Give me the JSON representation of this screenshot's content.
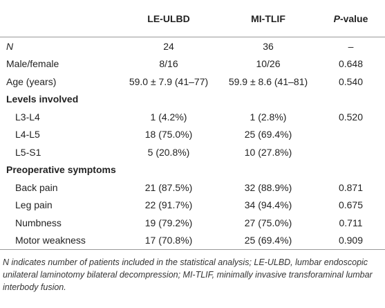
{
  "table": {
    "header": [
      "LE-ULBD",
      "MI-TLIF"
    ],
    "pvalue_header": {
      "italic": "P",
      "rest": "-value"
    },
    "rows": [
      [
        "N",
        "24",
        "36",
        "–"
      ],
      [
        "Male/female",
        "8/16",
        "10/26",
        "0.648"
      ],
      [
        "Age (years)",
        "59.0 ± 7.9 (41–77)",
        "59.9 ± 8.6 (41–81)",
        "0.540"
      ]
    ],
    "groups": [
      {
        "title": "Levels involved",
        "rows": [
          [
            "L3-L4",
            "1 (4.2%)",
            "1 (2.8%)",
            "0.520"
          ],
          [
            "L4-L5",
            "18 (75.0%)",
            "25 (69.4%)",
            null
          ],
          [
            "L5-S1",
            "5 (20.8%)",
            "10 (27.8%)",
            null
          ]
        ]
      },
      {
        "title": "Preoperative symptoms",
        "rows": [
          [
            "Back pain",
            "21 (87.5%)",
            "32 (88.9%)",
            "0.871"
          ],
          [
            "Leg pain",
            "22 (91.7%)",
            "34 (94.4%)",
            "0.675"
          ],
          [
            "Numbness",
            "19 (79.2%)",
            "27 (75.0%)",
            "0.711"
          ],
          [
            "Motor weakness",
            "17 (70.8%)",
            "25 (69.4%)",
            "0.909"
          ]
        ]
      }
    ]
  },
  "footnote": "N indicates number of patients included in the statistical analysis; LE-ULBD, lumbar endoscopic unilateral laminotomy bilateral decompression; MI-TLIF, minimally invasive transforaminal lumbar interbody fusion."
}
